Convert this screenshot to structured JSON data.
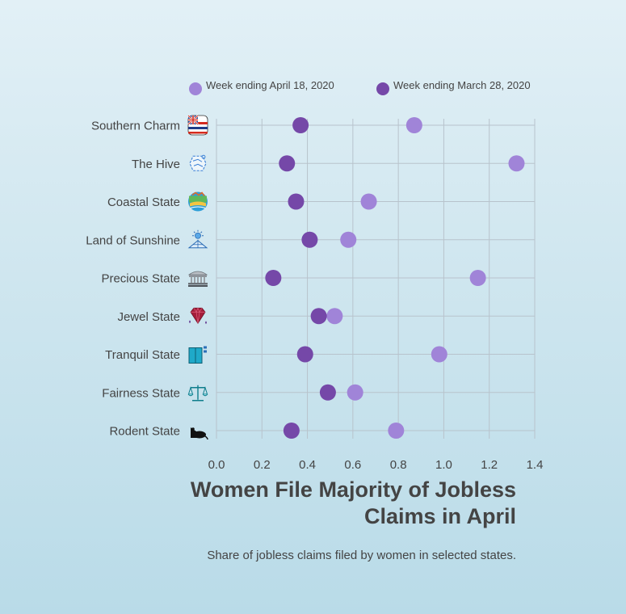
{
  "chart_data": {
    "type": "scatter",
    "title": "Women File Majority of Jobless Claims in April",
    "subtitle": "Share of jobless claims filed by women in selected states.",
    "xlabel": "",
    "ylabel": "",
    "xlim": [
      0,
      1.4
    ],
    "x_ticks": [
      "0.0",
      "0.2",
      "0.4",
      "0.6",
      "0.8",
      "1.0",
      "1.2",
      "1.4"
    ],
    "grid": true,
    "legend_position": "top",
    "categories": [
      {
        "label": "Southern Charm",
        "icon": "hawaii-flag-icon"
      },
      {
        "label": "The Hive",
        "icon": "hive-icon"
      },
      {
        "label": "Coastal State",
        "icon": "coastal-island-icon"
      },
      {
        "label": "Land of Sunshine",
        "icon": "sunshine-icon"
      },
      {
        "label": "Precious State",
        "icon": "capitol-building-icon"
      },
      {
        "label": "Jewel State",
        "icon": "gem-icon"
      },
      {
        "label": "Tranquil State",
        "icon": "tranquil-door-icon"
      },
      {
        "label": "Fairness State",
        "icon": "scales-icon"
      },
      {
        "label": "Rodent State",
        "icon": "rat-icon"
      }
    ],
    "series": [
      {
        "name": "Week ending April 18, 2020",
        "color": "#a084d8",
        "values": [
          0.87,
          1.32,
          0.67,
          0.58,
          1.15,
          0.52,
          0.98,
          0.61,
          0.79
        ]
      },
      {
        "name": "Week ending March 28, 2020",
        "color": "#7548a8",
        "values": [
          0.37,
          0.31,
          0.35,
          0.41,
          0.25,
          0.45,
          0.39,
          0.49,
          0.33
        ]
      }
    ]
  }
}
